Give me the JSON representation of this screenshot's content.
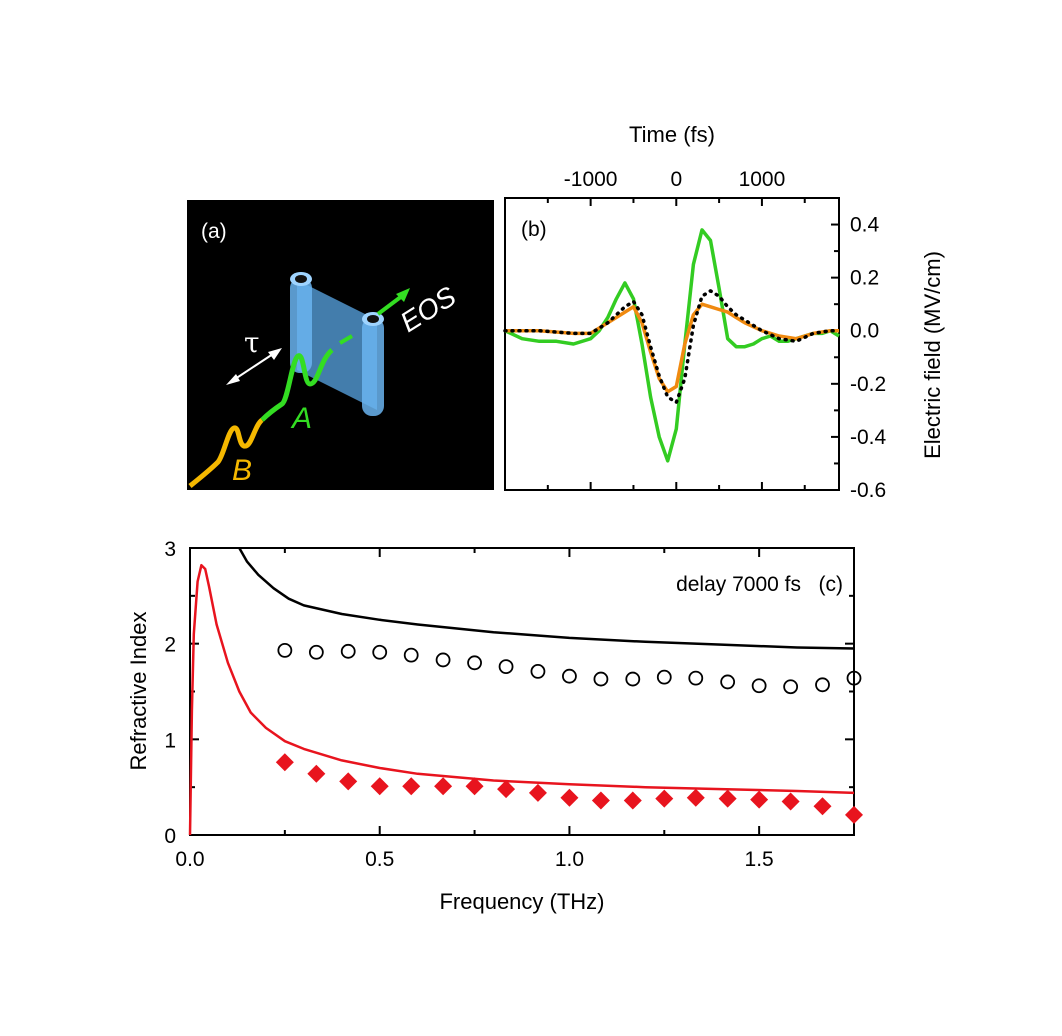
{
  "chart_data": [
    {
      "panel": "(a)",
      "type": "other",
      "description_labels": {
        "panel_label": "(a)",
        "tau": "τ",
        "pulse_a": "A",
        "pulse_b": "B",
        "eos": "EOS"
      },
      "colors": {
        "background": "#000000",
        "pulse_a": "#33dd22",
        "pulse_b": "#f5b800",
        "sample": "#4fa8e8"
      }
    },
    {
      "panel": "(b)",
      "type": "line",
      "panel_label": "(b)",
      "xlabel": "Time (fs)",
      "ylabel": "Electric field (MV/cm)",
      "xlim": [
        -2000,
        1900
      ],
      "ylim": [
        -0.6,
        0.5
      ],
      "xticks": [
        -1000,
        0,
        1000
      ],
      "yticks": [
        0.4,
        0.2,
        0.0,
        -0.2,
        -0.4,
        -0.6
      ],
      "ytick_labels": [
        "0.4",
        "0.2",
        "0.0",
        "-0.2",
        "-0.4",
        "-0.6"
      ],
      "xtick_labels": [
        "-1000",
        "0",
        "1000"
      ],
      "series": [
        {
          "name": "green",
          "color": "#33cc22",
          "style": "solid",
          "x": [
            -2000,
            -1800,
            -1600,
            -1400,
            -1200,
            -1000,
            -900,
            -800,
            -700,
            -600,
            -500,
            -400,
            -300,
            -200,
            -100,
            0,
            100,
            200,
            300,
            400,
            500,
            600,
            700,
            800,
            900,
            1000,
            1100,
            1200,
            1300,
            1400,
            1500,
            1600,
            1700,
            1800,
            1900
          ],
          "y": [
            0.0,
            -0.03,
            -0.04,
            -0.04,
            -0.05,
            -0.03,
            0.0,
            0.05,
            0.12,
            0.18,
            0.12,
            -0.05,
            -0.25,
            -0.4,
            -0.49,
            -0.37,
            -0.05,
            0.25,
            0.38,
            0.34,
            0.16,
            -0.03,
            -0.06,
            -0.06,
            -0.05,
            -0.03,
            -0.02,
            -0.04,
            -0.04,
            -0.03,
            -0.02,
            -0.01,
            -0.01,
            0.0,
            -0.02
          ]
        },
        {
          "name": "orange",
          "color": "#f08a10",
          "style": "solid",
          "x": [
            -2000,
            -1600,
            -1200,
            -1000,
            -800,
            -600,
            -500,
            -400,
            -300,
            -200,
            -100,
            0,
            100,
            200,
            300,
            400,
            500,
            600,
            700,
            800,
            1000,
            1200,
            1400,
            1600,
            1800,
            1900
          ],
          "y": [
            0.0,
            0.0,
            -0.01,
            -0.01,
            0.03,
            0.07,
            0.09,
            0.03,
            -0.08,
            -0.18,
            -0.23,
            -0.21,
            -0.05,
            0.06,
            0.1,
            0.09,
            0.08,
            0.07,
            0.05,
            0.03,
            0.0,
            -0.02,
            -0.03,
            -0.01,
            0.0,
            0.0
          ]
        },
        {
          "name": "dotted",
          "color": "#000000",
          "style": "dotted",
          "x": [
            -2000,
            -1600,
            -1200,
            -1000,
            -800,
            -600,
            -500,
            -400,
            -300,
            -200,
            -100,
            0,
            100,
            200,
            300,
            400,
            500,
            600,
            700,
            800,
            1000,
            1200,
            1400,
            1600,
            1800,
            1900
          ],
          "y": [
            0.0,
            0.0,
            -0.01,
            -0.01,
            0.03,
            0.09,
            0.11,
            0.06,
            -0.06,
            -0.17,
            -0.25,
            -0.27,
            -0.18,
            0.02,
            0.13,
            0.15,
            0.13,
            0.09,
            0.06,
            0.04,
            0.0,
            -0.03,
            -0.04,
            -0.01,
            0.0,
            0.0
          ]
        }
      ]
    },
    {
      "panel": "(c)",
      "type": "line",
      "panel_label": "(c)",
      "annotation": "delay 7000 fs",
      "xlabel": "Frequency (THz)",
      "ylabel": "Refractive Index",
      "xlim": [
        0.0,
        1.75
      ],
      "ylim": [
        0,
        3
      ],
      "xticks": [
        0.0,
        0.5,
        1.0,
        1.5
      ],
      "xtick_labels": [
        "0.0",
        "0.5",
        "1.0",
        "1.5"
      ],
      "yticks": [
        0,
        1,
        2,
        3
      ],
      "ytick_labels": [
        "0",
        "1",
        "2",
        "3"
      ],
      "series": [
        {
          "name": "black-line",
          "color": "#000000",
          "type": "line",
          "x": [
            0.13,
            0.15,
            0.18,
            0.22,
            0.26,
            0.3,
            0.4,
            0.5,
            0.6,
            0.8,
            1.0,
            1.2,
            1.4,
            1.6,
            1.75
          ],
          "y": [
            3.0,
            2.86,
            2.72,
            2.58,
            2.47,
            2.4,
            2.31,
            2.25,
            2.2,
            2.12,
            2.06,
            2.02,
            1.99,
            1.96,
            1.95
          ]
        },
        {
          "name": "red-line",
          "color": "#e8141e",
          "type": "line",
          "x": [
            0.0,
            0.005,
            0.01,
            0.02,
            0.03,
            0.04,
            0.05,
            0.07,
            0.1,
            0.13,
            0.16,
            0.2,
            0.25,
            0.3,
            0.4,
            0.5,
            0.6,
            0.8,
            1.0,
            1.2,
            1.4,
            1.6,
            1.75
          ],
          "y": [
            0.0,
            1.3,
            2.1,
            2.65,
            2.82,
            2.78,
            2.6,
            2.2,
            1.8,
            1.5,
            1.28,
            1.12,
            0.98,
            0.9,
            0.78,
            0.7,
            0.64,
            0.57,
            0.53,
            0.5,
            0.48,
            0.46,
            0.44
          ]
        },
        {
          "name": "open-circles",
          "color": "#000000",
          "type": "scatter",
          "marker": "circle-open",
          "x": [
            0.25,
            0.333,
            0.417,
            0.5,
            0.583,
            0.667,
            0.75,
            0.833,
            0.917,
            1.0,
            1.083,
            1.167,
            1.25,
            1.333,
            1.417,
            1.5,
            1.583,
            1.667,
            1.75
          ],
          "y": [
            1.93,
            1.91,
            1.92,
            1.91,
            1.88,
            1.83,
            1.8,
            1.76,
            1.71,
            1.66,
            1.63,
            1.63,
            1.65,
            1.64,
            1.6,
            1.56,
            1.55,
            1.57,
            1.64
          ]
        },
        {
          "name": "red-diamonds",
          "color": "#e8141e",
          "type": "scatter",
          "marker": "diamond-filled",
          "x": [
            0.25,
            0.333,
            0.417,
            0.5,
            0.583,
            0.667,
            0.75,
            0.833,
            0.917,
            1.0,
            1.083,
            1.167,
            1.25,
            1.333,
            1.417,
            1.5,
            1.583,
            1.667,
            1.75
          ],
          "y": [
            0.76,
            0.64,
            0.56,
            0.51,
            0.51,
            0.51,
            0.51,
            0.48,
            0.44,
            0.39,
            0.36,
            0.36,
            0.38,
            0.39,
            0.38,
            0.37,
            0.35,
            0.3,
            0.21
          ]
        }
      ]
    }
  ]
}
